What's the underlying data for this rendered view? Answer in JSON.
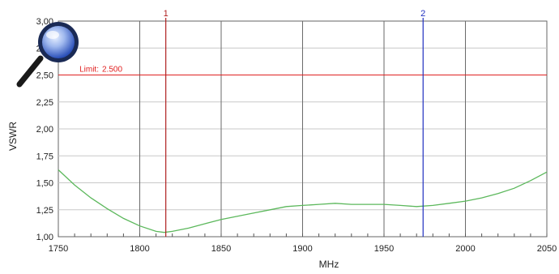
{
  "chart_data": {
    "type": "line",
    "xlabel": "MHz",
    "ylabel": "VSWR",
    "xlim": [
      1750,
      2050
    ],
    "ylim": [
      1.0,
      3.0
    ],
    "x_ticks": [
      1750,
      1800,
      1850,
      1900,
      1950,
      2000,
      2050
    ],
    "x_tick_labels": [
      "1750",
      "1800",
      "1850",
      "1900",
      "1950",
      "2000",
      "2050"
    ],
    "y_ticks": [
      1.0,
      1.25,
      1.5,
      1.75,
      2.0,
      2.25,
      2.5,
      2.75,
      3.0
    ],
    "y_tick_labels": [
      "1,00",
      "1,25",
      "1,50",
      "1,75",
      "2,00",
      "2,25",
      "2,50",
      "2,75",
      "3,00"
    ],
    "grid": true,
    "series": [
      {
        "color": "#5cb85c",
        "x": [
          1750,
          1760,
          1770,
          1780,
          1790,
          1800,
          1810,
          1815,
          1820,
          1830,
          1840,
          1850,
          1860,
          1870,
          1880,
          1890,
          1900,
          1910,
          1920,
          1930,
          1940,
          1950,
          1960,
          1970,
          1980,
          1990,
          2000,
          2010,
          2020,
          2030,
          2040,
          2050
        ],
        "y": [
          1.62,
          1.48,
          1.36,
          1.26,
          1.17,
          1.1,
          1.05,
          1.04,
          1.05,
          1.08,
          1.12,
          1.16,
          1.19,
          1.22,
          1.25,
          1.28,
          1.29,
          1.3,
          1.31,
          1.3,
          1.3,
          1.3,
          1.29,
          1.28,
          1.29,
          1.31,
          1.33,
          1.36,
          1.4,
          1.45,
          1.52,
          1.6
        ]
      }
    ],
    "limit_line": {
      "value": 2.5,
      "label": "Limit:",
      "value_label": "2.500",
      "color": "#e02020"
    },
    "markers": [
      {
        "label": "1",
        "x": 1816,
        "color": "#b02020"
      },
      {
        "label": "2",
        "x": 1974,
        "color": "#2030c0"
      }
    ]
  },
  "icons": {
    "zoom": "magnifier-icon"
  }
}
